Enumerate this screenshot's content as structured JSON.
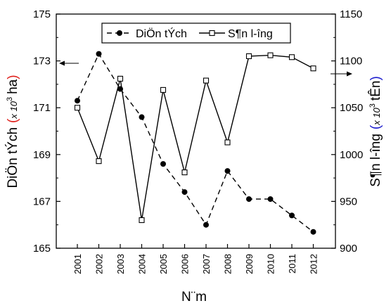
{
  "chart_data": {
    "type": "line",
    "categories": [
      "2001",
      "2002",
      "2003",
      "2004",
      "2005",
      "2006",
      "2007",
      "2008",
      "2009",
      "2010",
      "2011",
      "2012"
    ],
    "series": [
      {
        "name": "DiÖn tÝch",
        "axis": "left",
        "style": "dashed",
        "marker": "filled-circle",
        "values": [
          171.3,
          173.3,
          171.8,
          170.6,
          168.6,
          167.4,
          166.0,
          168.3,
          167.1,
          167.1,
          166.4,
          165.7
        ]
      },
      {
        "name": "S¶n l­-îng",
        "axis": "right",
        "style": "solid",
        "marker": "open-square",
        "values": [
          1050,
          993,
          1081,
          930,
          1069,
          981,
          1079,
          1013,
          1105,
          1106,
          1104,
          1092
        ]
      }
    ],
    "left_axis": {
      "ylim": [
        165,
        175
      ],
      "ticks": [
        "165",
        "167",
        "169",
        "171",
        "173",
        "175"
      ],
      "label_main": "DiÖn tÝch",
      "label_unit_open": "(",
      "label_unit_mid": "x 10",
      "label_unit_sup": "3",
      "label_unit_end": "ha",
      "label_unit_close": ")",
      "unit_color": "#e0201b"
    },
    "right_axis": {
      "ylim": [
        900,
        1150
      ],
      "ticks": [
        "900",
        "950",
        "1000",
        "1050",
        "1100",
        "1150"
      ],
      "label_main": "S¶n l­-îng",
      "label_unit_open": "(",
      "label_unit_mid": "x 10",
      "label_unit_sup": "3",
      "label_unit_end": "tÊn",
      "label_unit_close": ")",
      "unit_color": "#1a1acd"
    },
    "xlabel": "N¨m",
    "legend_position": "top-center",
    "grid": false
  }
}
